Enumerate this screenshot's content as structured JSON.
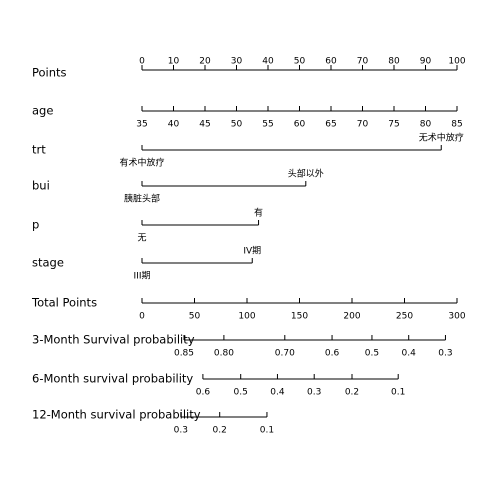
{
  "chart_data": {
    "type": "nomogram",
    "points_axis": {
      "label": "Points",
      "lim": [
        0,
        100
      ],
      "ticks": [
        0,
        10,
        20,
        30,
        40,
        50,
        60,
        70,
        80,
        90,
        100
      ]
    },
    "variables": [
      {
        "label": "age",
        "ticks": [
          35,
          40,
          45,
          50,
          55,
          60,
          65,
          70,
          75,
          80,
          85
        ],
        "points": [
          0,
          10,
          20,
          30,
          40,
          50,
          60,
          70,
          80,
          90,
          100
        ]
      },
      {
        "label": "trt",
        "ticks": [
          "有术中放疗",
          "无术中放疗"
        ],
        "points": [
          0,
          95
        ]
      },
      {
        "label": "bui",
        "ticks": [
          "胰脏头部",
          "头部以外"
        ],
        "points": [
          0,
          52
        ]
      },
      {
        "label": "p",
        "ticks": [
          "无",
          "有"
        ],
        "points": [
          0,
          37
        ]
      },
      {
        "label": "stage",
        "ticks": [
          "III期",
          "IV期"
        ],
        "points": [
          0,
          35
        ]
      }
    ],
    "total_points": {
      "label": "Total Points",
      "lim": [
        0,
        300
      ],
      "ticks": [
        0,
        50,
        100,
        150,
        200,
        250,
        300
      ]
    },
    "survival": [
      {
        "label": "3-Month Survival probability",
        "ticks": [
          0.85,
          {
            "value": 0.8,
            "label": "0.80"
          },
          {
            "value": 0.7,
            "label": "0.70"
          },
          0.6,
          0.5,
          0.4,
          0.3
        ],
        "total_points": [
          40,
          78,
          136,
          181,
          219,
          254,
          289
        ]
      },
      {
        "label": "6-Month survival probability",
        "ticks": [
          0.6,
          0.5,
          0.4,
          0.3,
          0.2,
          0.1
        ],
        "total_points": [
          58,
          94,
          129,
          164,
          200,
          244
        ]
      },
      {
        "label": "12-Month survival probability",
        "ticks": [
          0.3,
          0.2,
          0.1
        ],
        "total_points": [
          37,
          74,
          119
        ]
      }
    ]
  }
}
